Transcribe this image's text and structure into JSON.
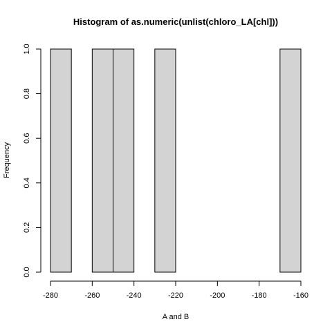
{
  "chart_data": {
    "type": "bar",
    "title": "Histogram of as.numeric(unlist(chloro_LA[chl]))",
    "xlabel": "A and B",
    "ylabel": "Frequency",
    "xlim": [
      -280,
      -160
    ],
    "ylim": [
      0,
      1
    ],
    "x_ticks": [
      -280,
      -260,
      -240,
      -220,
      -200,
      -180,
      -160
    ],
    "y_ticks": [
      0.0,
      0.2,
      0.4,
      0.6,
      0.8,
      1.0
    ],
    "x_tick_labels": [
      "-280",
      "-260",
      "-240",
      "-220",
      "-200",
      "-180",
      "-160"
    ],
    "y_tick_labels": [
      "0.0",
      "0.2",
      "0.4",
      "0.6",
      "0.8",
      "1.0"
    ],
    "bin_width": 10,
    "bins": [
      {
        "from": -280,
        "to": -270,
        "count": 1
      },
      {
        "from": -270,
        "to": -260,
        "count": 0
      },
      {
        "from": -260,
        "to": -250,
        "count": 1
      },
      {
        "from": -250,
        "to": -240,
        "count": 1
      },
      {
        "from": -240,
        "to": -230,
        "count": 0
      },
      {
        "from": -230,
        "to": -220,
        "count": 1
      },
      {
        "from": -220,
        "to": -210,
        "count": 0
      },
      {
        "from": -210,
        "to": -200,
        "count": 0
      },
      {
        "from": -200,
        "to": -190,
        "count": 0
      },
      {
        "from": -190,
        "to": -180,
        "count": 0
      },
      {
        "from": -180,
        "to": -170,
        "count": 0
      },
      {
        "from": -170,
        "to": -160,
        "count": 1
      }
    ],
    "bar_fill": "#d3d3d3",
    "bar_stroke": "#000000",
    "grid": false,
    "legend": "none"
  }
}
